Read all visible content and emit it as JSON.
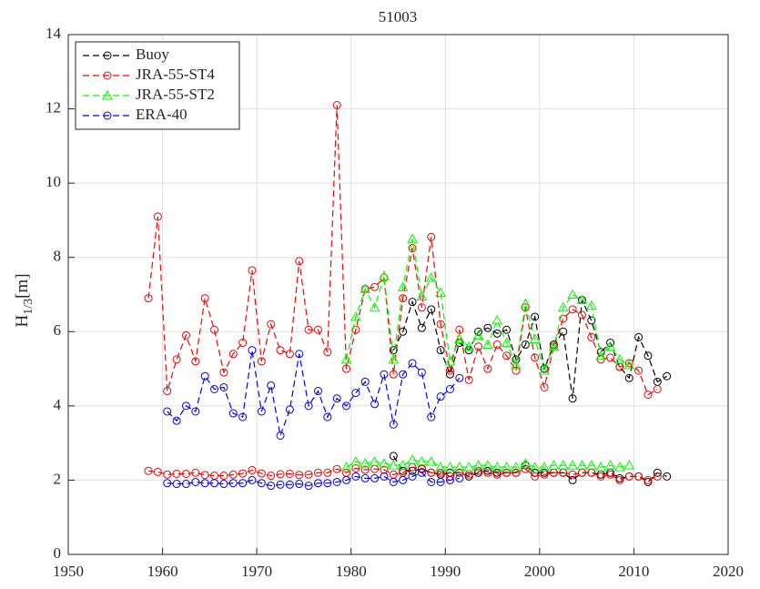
{
  "chart_data": {
    "type": "line",
    "title": "51003",
    "ylabel": {
      "base": "H",
      "subscript": "1/3",
      "unit": "[m]"
    },
    "xlim": [
      1950,
      2020
    ],
    "xticks": [
      1950,
      1960,
      1970,
      1980,
      1990,
      2000,
      2010,
      2020
    ],
    "ylim": [
      0,
      14
    ],
    "yticks": [
      0,
      2,
      4,
      6,
      8,
      10,
      12,
      14
    ],
    "grid": true,
    "legend": "upper left",
    "series": [
      {
        "name": "Buoy",
        "color": "#000000",
        "marker": "circle",
        "x": [
          1984.5,
          1985.5,
          1986.5,
          1987.5,
          1988.5,
          1989.5,
          1990.5,
          1991.5,
          1992.5,
          1993.5,
          1994.5,
          1995.5,
          1996.5,
          1997.5,
          1998.5,
          1999.5,
          2000.5,
          2001.5,
          2002.5,
          2003.5,
          2004.5,
          2005.5,
          2006.5,
          2007.5,
          2008.5,
          2009.5,
          2010.5,
          2011.5,
          2012.5,
          2013.5
        ],
        "values": [
          5.5,
          6.0,
          6.8,
          6.1,
          6.6,
          5.5,
          4.85,
          5.7,
          5.5,
          6.0,
          6.1,
          5.95,
          6.05,
          5.25,
          5.65,
          6.4,
          5.0,
          5.65,
          6.0,
          4.2,
          6.85,
          6.3,
          5.45,
          5.7,
          5.05,
          4.75,
          5.85,
          5.35,
          4.65,
          4.8
        ]
      },
      {
        "name": "JRA-55-ST4",
        "color": "#ff0000",
        "marker": "circle",
        "x": [
          1958.5,
          1959.5,
          1960.5,
          1961.5,
          1962.5,
          1963.5,
          1964.5,
          1965.5,
          1966.5,
          1967.5,
          1968.5,
          1969.5,
          1970.5,
          1971.5,
          1972.5,
          1973.5,
          1974.5,
          1975.5,
          1976.5,
          1977.5,
          1978.5,
          1979.5,
          1980.5,
          1981.5,
          1982.5,
          1983.5,
          1984.5,
          1985.5,
          1986.5,
          1987.5,
          1988.5,
          1989.5,
          1990.5,
          1991.5,
          1992.5,
          1993.5,
          1994.5,
          1995.5,
          1996.5,
          1997.5,
          1998.5,
          1999.5,
          2000.5,
          2001.5,
          2002.5,
          2003.5,
          2004.5,
          2005.5,
          2006.5,
          2007.5,
          2008.5,
          2009.5,
          2010.5,
          2011.5,
          2012.5
        ],
        "values": [
          6.9,
          9.1,
          4.4,
          5.25,
          5.9,
          5.2,
          6.9,
          6.05,
          4.9,
          5.4,
          5.7,
          7.65,
          5.2,
          6.2,
          5.5,
          5.4,
          7.9,
          6.05,
          6.05,
          5.45,
          12.1,
          5.0,
          6.05,
          7.15,
          7.2,
          7.45,
          4.85,
          6.9,
          8.25,
          6.65,
          8.55,
          6.2,
          4.95,
          6.05,
          4.7,
          5.6,
          5.0,
          5.65,
          5.35,
          4.95,
          6.65,
          5.3,
          4.5,
          5.6,
          6.35,
          6.6,
          6.45,
          5.85,
          5.25,
          5.3,
          5.05,
          5.15,
          4.95,
          4.3,
          4.45
        ]
      },
      {
        "name": "JRA-55-ST2",
        "color": "#00ff00",
        "marker": "triangle",
        "x": [
          1979.5,
          1980.5,
          1981.5,
          1982.5,
          1983.5,
          1984.5,
          1985.5,
          1986.5,
          1987.5,
          1988.5,
          1989.5,
          1990.5,
          1991.5,
          1992.5,
          1993.5,
          1994.5,
          1995.5,
          1996.5,
          1997.5,
          1998.5,
          1999.5,
          2000.5,
          2001.5,
          2002.5,
          2003.5,
          2004.5,
          2005.5,
          2006.5,
          2007.5,
          2008.5,
          2009.5
        ],
        "values": [
          5.25,
          6.4,
          7.15,
          6.65,
          7.5,
          5.25,
          7.2,
          8.5,
          6.95,
          7.45,
          7.05,
          5.2,
          5.8,
          5.6,
          5.9,
          5.65,
          6.3,
          5.7,
          5.1,
          6.75,
          5.8,
          4.95,
          5.6,
          6.65,
          7.0,
          6.85,
          6.7,
          5.35,
          5.6,
          5.25,
          5.1
        ]
      },
      {
        "name": "ERA-40",
        "color": "#0000ff",
        "marker": "circle",
        "x": [
          1960.5,
          1961.5,
          1962.5,
          1963.5,
          1964.5,
          1965.5,
          1966.5,
          1967.5,
          1968.5,
          1969.5,
          1970.5,
          1971.5,
          1972.5,
          1973.5,
          1974.5,
          1975.5,
          1976.5,
          1977.5,
          1978.5,
          1979.5,
          1980.5,
          1981.5,
          1982.5,
          1983.5,
          1984.5,
          1985.5,
          1986.5,
          1987.5,
          1988.5,
          1989.5,
          1990.5,
          1991.5
        ],
        "values": [
          3.85,
          3.6,
          4.0,
          3.85,
          4.8,
          4.45,
          4.5,
          3.8,
          3.7,
          5.5,
          3.85,
          4.55,
          3.2,
          3.9,
          5.4,
          4.0,
          4.4,
          3.7,
          4.2,
          4.0,
          4.35,
          4.65,
          4.05,
          4.85,
          3.5,
          4.85,
          5.15,
          4.9,
          3.7,
          4.25,
          4.45,
          4.75
        ]
      },
      {
        "color": "#000000",
        "marker": "circle",
        "x": [
          1984.5,
          1985.5,
          1986.5,
          1987.5,
          1988.5,
          1989.5,
          1990.5,
          1991.5,
          1992.5,
          1993.5,
          1994.5,
          1995.5,
          1996.5,
          1997.5,
          1998.5,
          1999.5,
          2000.5,
          2001.5,
          2002.5,
          2003.5,
          2004.5,
          2005.5,
          2006.5,
          2007.5,
          2008.5,
          2009.5,
          2010.5,
          2011.5,
          2012.5,
          2013.5
        ],
        "values": [
          2.65,
          2.25,
          2.25,
          2.3,
          2.2,
          2.15,
          2.2,
          2.2,
          2.1,
          2.2,
          2.25,
          2.2,
          2.2,
          2.2,
          2.4,
          2.2,
          2.2,
          2.2,
          2.2,
          2.0,
          2.2,
          2.2,
          2.15,
          2.2,
          2.05,
          2.1,
          2.1,
          1.95,
          2.2,
          2.1
        ]
      },
      {
        "color": "#ff0000",
        "marker": "circle",
        "x": [
          1958.5,
          1959.5,
          1960.5,
          1961.5,
          1962.5,
          1963.5,
          1964.5,
          1965.5,
          1966.5,
          1967.5,
          1968.5,
          1969.5,
          1970.5,
          1971.5,
          1972.5,
          1973.5,
          1974.5,
          1975.5,
          1976.5,
          1977.5,
          1978.5,
          1979.5,
          1980.5,
          1981.5,
          1982.5,
          1983.5,
          1984.5,
          1985.5,
          1986.5,
          1987.5,
          1988.5,
          1989.5,
          1990.5,
          1991.5,
          1992.5,
          1993.5,
          1994.5,
          1995.5,
          1996.5,
          1997.5,
          1998.5,
          1999.5,
          2000.5,
          2001.5,
          2002.5,
          2003.5,
          2004.5,
          2005.5,
          2006.5,
          2007.5,
          2008.5,
          2009.5,
          2010.5,
          2011.5,
          2012.5
        ],
        "values": [
          2.25,
          2.22,
          2.15,
          2.17,
          2.17,
          2.2,
          2.14,
          2.12,
          2.12,
          2.15,
          2.18,
          2.27,
          2.18,
          2.12,
          2.16,
          2.17,
          2.14,
          2.15,
          2.2,
          2.2,
          2.3,
          2.2,
          2.32,
          2.28,
          2.3,
          2.28,
          2.15,
          2.2,
          2.35,
          2.32,
          2.2,
          2.2,
          2.1,
          2.2,
          2.15,
          2.25,
          2.2,
          2.15,
          2.2,
          2.2,
          2.3,
          2.1,
          2.15,
          2.2,
          2.2,
          2.15,
          2.2,
          2.2,
          2.1,
          2.15,
          2.0,
          2.1,
          2.1,
          2.0,
          2.1
        ]
      },
      {
        "color": "#00ff00",
        "marker": "triangle",
        "x": [
          1979.5,
          1980.5,
          1981.5,
          1982.5,
          1983.5,
          1984.5,
          1985.5,
          1986.5,
          1987.5,
          1988.5,
          1989.5,
          1990.5,
          1991.5,
          1992.5,
          1993.5,
          1994.5,
          1995.5,
          1996.5,
          1997.5,
          1998.5,
          1999.5,
          2000.5,
          2001.5,
          2002.5,
          2003.5,
          2004.5,
          2005.5,
          2006.5,
          2007.5,
          2008.5,
          2009.5
        ],
        "values": [
          2.35,
          2.5,
          2.45,
          2.5,
          2.45,
          2.4,
          2.4,
          2.55,
          2.5,
          2.5,
          2.35,
          2.35,
          2.35,
          2.35,
          2.4,
          2.4,
          2.35,
          2.35,
          2.35,
          2.45,
          2.35,
          2.35,
          2.4,
          2.4,
          2.4,
          2.4,
          2.4,
          2.35,
          2.4,
          2.35,
          2.4
        ]
      },
      {
        "color": "#0000ff",
        "marker": "circle",
        "x": [
          1960.5,
          1961.5,
          1962.5,
          1963.5,
          1964.5,
          1965.5,
          1966.5,
          1967.5,
          1968.5,
          1969.5,
          1970.5,
          1971.5,
          1972.5,
          1973.5,
          1974.5,
          1975.5,
          1976.5,
          1977.5,
          1978.5,
          1979.5,
          1980.5,
          1981.5,
          1982.5,
          1983.5,
          1984.5,
          1985.5,
          1986.5,
          1987.5,
          1988.5,
          1989.5,
          1990.5,
          1991.5
        ],
        "values": [
          1.92,
          1.9,
          1.9,
          1.95,
          1.92,
          1.92,
          1.9,
          1.92,
          1.92,
          2.0,
          1.92,
          1.85,
          1.88,
          1.88,
          1.9,
          1.85,
          1.92,
          1.92,
          1.95,
          2.0,
          2.1,
          2.05,
          2.05,
          2.1,
          1.95,
          2.0,
          2.1,
          2.2,
          1.95,
          1.95,
          2.0,
          2.05
        ]
      }
    ]
  }
}
